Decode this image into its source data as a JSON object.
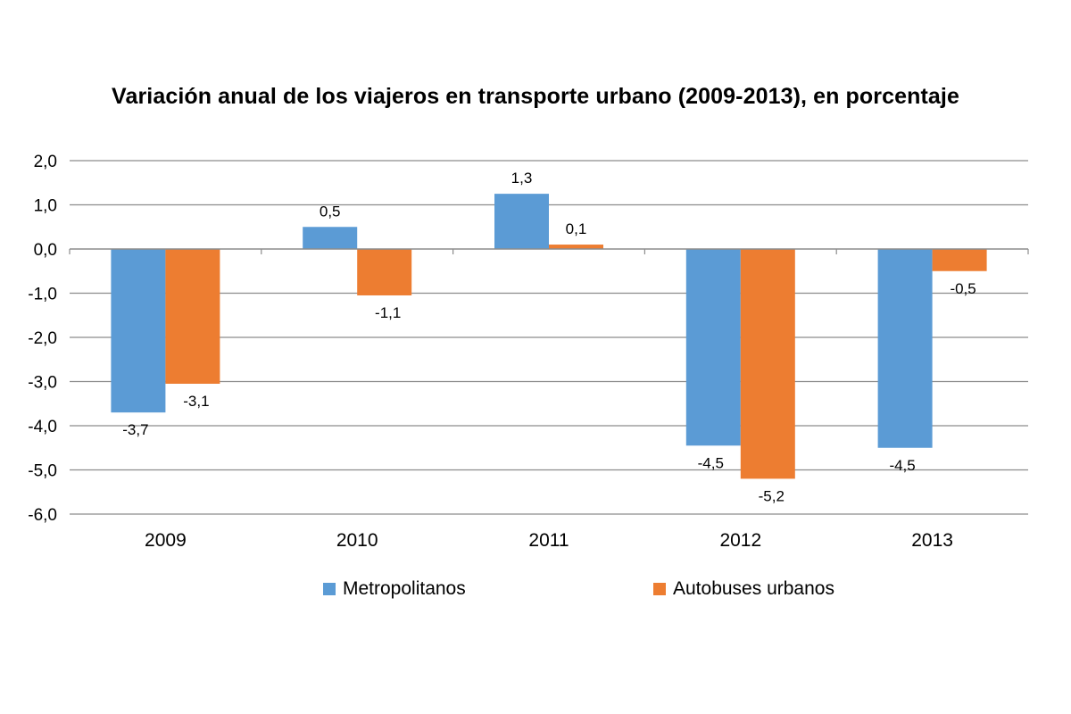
{
  "chart_data": {
    "type": "bar",
    "title": "Variación anual de los viajeros en transporte urbano (2009-2013), en porcentaje",
    "categories": [
      "2009",
      "2010",
      "2011",
      "2012",
      "2013"
    ],
    "series": [
      {
        "name": "Metropolitanos",
        "color": "#5B9BD5",
        "values": [
          -3.7,
          0.5,
          1.25,
          -4.45,
          -4.5
        ],
        "labels": [
          "-3,7",
          "0,5",
          "1,3",
          "-4,5",
          "-4,5"
        ]
      },
      {
        "name": "Autobuses urbanos",
        "color": "#ED7D31",
        "values": [
          -3.05,
          -1.05,
          0.1,
          -5.2,
          -0.5
        ],
        "labels": [
          "-3,1",
          "-1,1",
          "0,1",
          "-5,2",
          "-0,5"
        ]
      }
    ],
    "ylim": [
      -6.0,
      2.0
    ],
    "yticks": [
      2.0,
      1.0,
      0.0,
      -1.0,
      -2.0,
      -3.0,
      -4.0,
      -5.0,
      -6.0
    ],
    "ytick_labels": [
      "2,0",
      "1,0",
      "0,0",
      "-1,0",
      "-2,0",
      "-3,0",
      "-4,0",
      "-5,0",
      "-6,0"
    ],
    "xlabel": "",
    "ylabel": "",
    "grid": true,
    "legend_position": "bottom"
  }
}
